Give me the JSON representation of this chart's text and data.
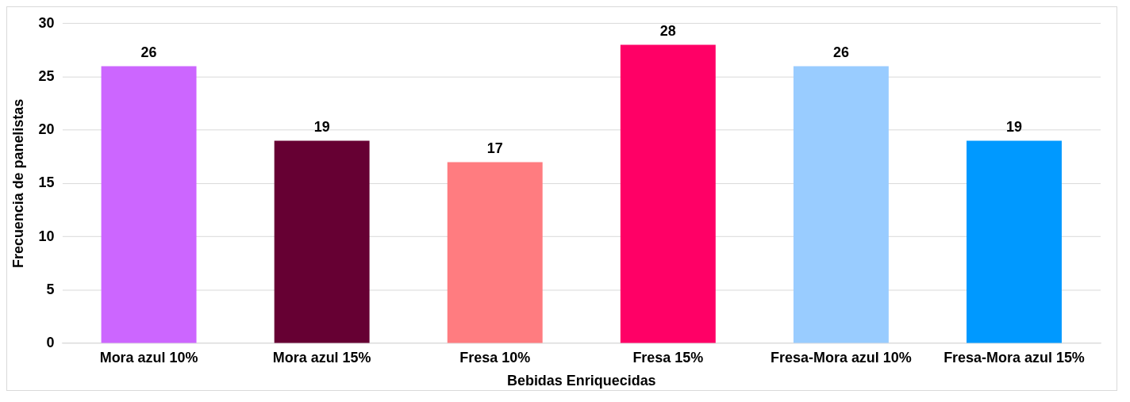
{
  "chart_data": {
    "type": "bar",
    "xlabel": "Bebidas Enriquecidas",
    "ylabel": "Frecuencia de panelistas",
    "categories": [
      "Mora azul 10%",
      "Mora azul 15%",
      "Fresa 10%",
      "Fresa 15%",
      "Fresa-Mora azul 10%",
      "Fresa-Mora azul 15%"
    ],
    "values": [
      26,
      19,
      17,
      28,
      26,
      19
    ],
    "colors": [
      "#cc66ff",
      "#660033",
      "#ff7c80",
      "#ff0066",
      "#99ccff",
      "#0099ff"
    ],
    "ylim": [
      0,
      30
    ],
    "yticks": [
      0,
      5,
      10,
      15,
      20,
      25,
      30
    ],
    "grid": "y",
    "data_labels": true,
    "legend": false
  }
}
